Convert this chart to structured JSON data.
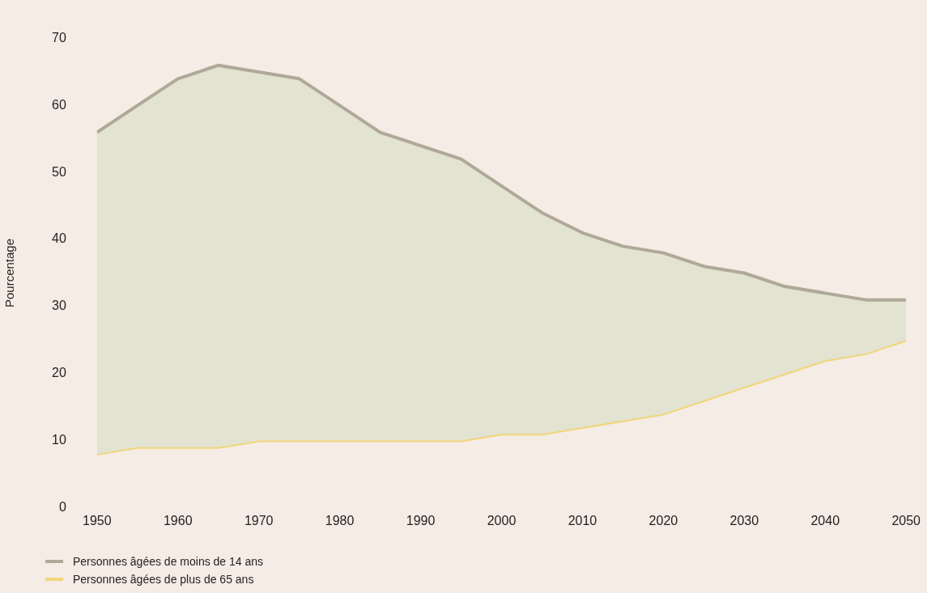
{
  "chart_data": {
    "type": "line",
    "ylabel": "Pourcentage",
    "x": [
      1950,
      1955,
      1960,
      1965,
      1970,
      1975,
      1980,
      1985,
      1990,
      1995,
      2000,
      2005,
      2010,
      2015,
      2020,
      2025,
      2030,
      2035,
      2040,
      2045,
      2050
    ],
    "series": [
      {
        "name": "Personnes âgées de moins de 14 ans",
        "type": "area",
        "color": "#b0a898",
        "values": [
          56,
          60,
          64,
          66,
          65,
          64,
          60,
          56,
          54,
          52,
          48,
          44,
          41,
          39,
          38,
          36,
          35,
          33,
          32,
          31,
          31
        ]
      },
      {
        "name": "Personnes âgées de plus de 65 ans",
        "type": "line",
        "color": "#f0d67a",
        "values": [
          8,
          9,
          9,
          9,
          10,
          10,
          10,
          10,
          10,
          10,
          11,
          11,
          12,
          13,
          14,
          16,
          18,
          20,
          22,
          23,
          25
        ]
      }
    ],
    "xlim": [
      1950,
      2050
    ],
    "xticks": [
      1950,
      1960,
      1970,
      1980,
      1990,
      2000,
      2010,
      2020,
      2030,
      2040,
      2050
    ],
    "ylim": [
      0,
      70
    ],
    "yticks": [
      0,
      10,
      20,
      30,
      40,
      50,
      60,
      70
    ],
    "grid": false,
    "legend": "bottom left",
    "marker": "none",
    "line_style": "solid"
  }
}
